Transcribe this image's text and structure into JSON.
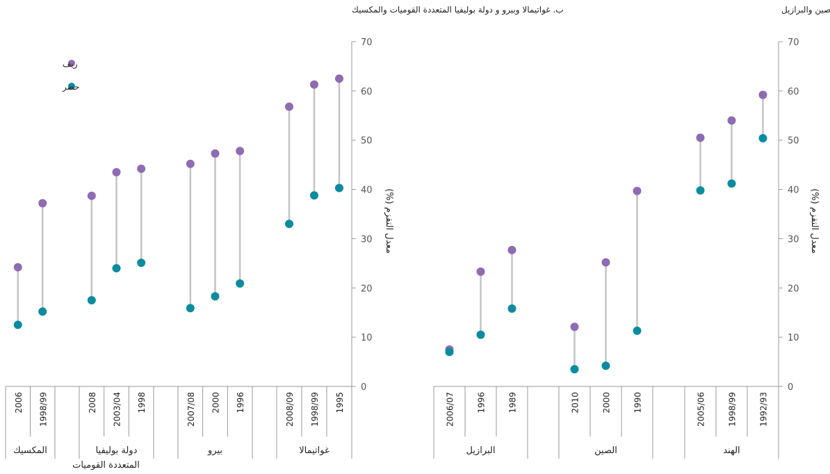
{
  "colors": {
    "rural": "#8e6bb3",
    "urban": "#0a8c9e",
    "stem": "#c4c4c4",
    "axis": "#999999"
  },
  "legend": {
    "rural": "ريف",
    "urban": "حضر"
  },
  "chart_data": [
    {
      "type": "dot-range",
      "title": "أ. الهند والصين والبرازيل",
      "ylabel": "معدل التقزم (%)",
      "ylim": [
        0,
        70
      ],
      "yticks": [
        "0",
        "10",
        "20",
        "30",
        "40",
        "50",
        "60",
        "70"
      ],
      "groups": [
        {
          "name": "البرازيل",
          "years": [
            "2006/07",
            "1996",
            "1989"
          ],
          "rural": [
            7.5,
            23.3,
            27.7
          ],
          "urban": [
            7.0,
            10.5,
            15.8
          ]
        },
        {
          "name": "الصين",
          "years": [
            "2010",
            "2000",
            "1990"
          ],
          "rural": [
            12.1,
            25.2,
            39.7
          ],
          "urban": [
            3.5,
            4.2,
            11.3
          ]
        },
        {
          "name": "الهند",
          "years": [
            "2005/06",
            "1998/99",
            "1992/93"
          ],
          "rural": [
            50.5,
            54.0,
            59.2
          ],
          "urban": [
            39.8,
            41.2,
            50.4
          ]
        }
      ]
    },
    {
      "type": "dot-range",
      "title": "ب. غواتيمالا وبيرو و دولة بوليفيا المتعددة القوميات والمكسيك",
      "ylabel": "معدل التقزم (%)",
      "ylim": [
        0,
        70
      ],
      "yticks": [
        "0",
        "10",
        "20",
        "30",
        "40",
        "50",
        "60",
        "70"
      ],
      "groups": [
        {
          "name": "المكسيك",
          "years": [
            "2006",
            "1998/99"
          ],
          "rural": [
            24.2,
            37.2
          ],
          "urban": [
            12.5,
            15.2
          ]
        },
        {
          "name": "دولة بوليفيا المتعددة القوميات",
          "years": [
            "2008",
            "2003/04",
            "1998"
          ],
          "rural": [
            38.7,
            43.5,
            44.2
          ],
          "urban": [
            17.5,
            24.0,
            25.1
          ]
        },
        {
          "name": "بيرو",
          "years": [
            "2007/08",
            "2000",
            "1996"
          ],
          "rural": [
            45.2,
            47.3,
            47.8
          ],
          "urban": [
            15.9,
            18.3,
            20.9
          ]
        },
        {
          "name": "غواتيمالا",
          "years": [
            "2008/09",
            "1998/99",
            "1995"
          ],
          "rural": [
            56.8,
            61.3,
            62.5
          ],
          "urban": [
            33.0,
            38.8,
            40.3
          ]
        }
      ]
    }
  ]
}
